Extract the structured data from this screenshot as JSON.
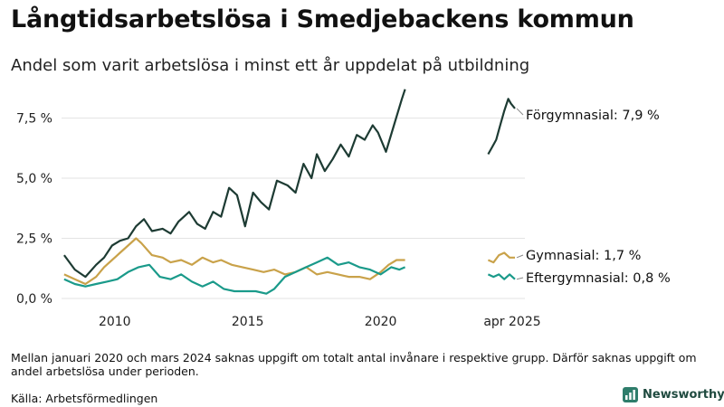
{
  "title": "Långtidsarbetslösa i Smedjebackens kommun",
  "subtitle": "Andel som varit arbetslösa i minst ett år uppdelat på utbildning",
  "note": "Mellan januari 2020 och mars 2024 saknas uppgift om totalt antal invånare i respektive grupp. Därför saknas uppgift om andel arbetslösa under perioden.",
  "source": "Källa: Arbetsförmedlingen",
  "brand": "Newsworthy",
  "chart_data": {
    "type": "line",
    "title": "Långtidsarbetslösa i Smedjebackens kommun",
    "subtitle": "Andel som varit arbetslösa i minst ett år uppdelat på utbildning",
    "xlabel": "",
    "ylabel": "",
    "ylim": [
      0,
      8.8
    ],
    "yticks": [
      0,
      2.5,
      5.0,
      7.5
    ],
    "ytick_labels": [
      "0,0 %",
      "2,5 %",
      "5,0 %",
      "7,5 %"
    ],
    "xticks": [
      2010,
      2015,
      2020
    ],
    "xtick_labels": [
      "2010",
      "2015",
      "2020"
    ],
    "recent_label": "apr 2025",
    "grid": true,
    "legend": "right-end labels",
    "series": [
      {
        "name": "Förgymnasial",
        "end_label": "Förgymnasial: 7,9 %",
        "color": "#1d3b33",
        "x": [
          2008.1,
          2008.5,
          2008.9,
          2009.3,
          2009.6,
          2009.9,
          2010.2,
          2010.5,
          2010.8,
          2011.1,
          2011.4,
          2011.8,
          2012.1,
          2012.4,
          2012.8,
          2013.1,
          2013.4,
          2013.7,
          2014.0,
          2014.3,
          2014.6,
          2014.9,
          2015.2,
          2015.5,
          2015.8,
          2016.1,
          2016.5,
          2016.8,
          2017.1,
          2017.4,
          2017.6,
          2017.9,
          2018.2,
          2018.5,
          2018.8,
          2019.1,
          2019.4,
          2019.7,
          2019.9,
          2020.2,
          2020.5,
          2020.8,
          2020.92
        ],
        "values": [
          1.8,
          1.2,
          0.9,
          1.4,
          1.7,
          2.2,
          2.4,
          2.5,
          3.0,
          3.3,
          2.8,
          2.9,
          2.7,
          3.2,
          3.6,
          3.1,
          2.9,
          3.6,
          3.4,
          4.6,
          4.3,
          3.0,
          4.4,
          4.0,
          3.7,
          4.9,
          4.7,
          4.4,
          5.6,
          5.0,
          6.0,
          5.3,
          5.8,
          6.4,
          5.9,
          6.8,
          6.6,
          7.2,
          6.9,
          6.1,
          7.2,
          8.3,
          8.7
        ],
        "recent": {
          "x": [
            2024.25,
            2024.4,
            2024.55,
            2024.7,
            2024.85,
            2025.0,
            2025.1,
            2025.25
          ],
          "values": [
            6.0,
            6.3,
            6.6,
            7.2,
            7.8,
            8.3,
            8.1,
            7.9
          ]
        }
      },
      {
        "name": "Gymnasial",
        "end_label": "Gymnasial: 1,7 %",
        "color": "#c9a24a",
        "x": [
          2008.1,
          2008.5,
          2008.9,
          2009.3,
          2009.6,
          2009.9,
          2010.2,
          2010.5,
          2010.8,
          2011.0,
          2011.4,
          2011.8,
          2012.1,
          2012.5,
          2012.9,
          2013.3,
          2013.7,
          2014.0,
          2014.4,
          2014.8,
          2015.2,
          2015.6,
          2016.0,
          2016.4,
          2016.8,
          2017.2,
          2017.6,
          2018.0,
          2018.4,
          2018.8,
          2019.2,
          2019.6,
          2020.0,
          2020.3,
          2020.6,
          2020.92
        ],
        "values": [
          1.0,
          0.8,
          0.6,
          0.9,
          1.3,
          1.6,
          1.9,
          2.2,
          2.5,
          2.3,
          1.8,
          1.7,
          1.5,
          1.6,
          1.4,
          1.7,
          1.5,
          1.6,
          1.4,
          1.3,
          1.2,
          1.1,
          1.2,
          1.0,
          1.1,
          1.3,
          1.0,
          1.1,
          1.0,
          0.9,
          0.9,
          0.8,
          1.1,
          1.4,
          1.6,
          1.6
        ],
        "recent": {
          "x": [
            2024.25,
            2024.45,
            2024.65,
            2024.85,
            2025.05,
            2025.25
          ],
          "values": [
            1.6,
            1.5,
            1.8,
            1.9,
            1.7,
            1.7
          ]
        }
      },
      {
        "name": "Eftergymnasial",
        "end_label": "Eftergymnasial: 0,8 %",
        "color": "#1a9a8a",
        "x": [
          2008.1,
          2008.5,
          2008.9,
          2009.3,
          2009.7,
          2010.1,
          2010.5,
          2010.9,
          2011.3,
          2011.7,
          2012.1,
          2012.5,
          2012.9,
          2013.3,
          2013.7,
          2014.1,
          2014.5,
          2014.9,
          2015.3,
          2015.7,
          2016.0,
          2016.4,
          2016.8,
          2017.2,
          2017.6,
          2018.0,
          2018.4,
          2018.8,
          2019.2,
          2019.6,
          2020.0,
          2020.4,
          2020.7,
          2020.92
        ],
        "values": [
          0.8,
          0.6,
          0.5,
          0.6,
          0.7,
          0.8,
          1.1,
          1.3,
          1.4,
          0.9,
          0.8,
          1.0,
          0.7,
          0.5,
          0.7,
          0.4,
          0.3,
          0.3,
          0.3,
          0.2,
          0.4,
          0.9,
          1.1,
          1.3,
          1.5,
          1.7,
          1.4,
          1.5,
          1.3,
          1.2,
          1.0,
          1.3,
          1.2,
          1.3
        ],
        "recent": {
          "x": [
            2024.25,
            2024.45,
            2024.65,
            2024.85,
            2025.05,
            2025.25
          ],
          "values": [
            1.0,
            0.9,
            1.0,
            0.8,
            1.0,
            0.8
          ]
        }
      }
    ]
  }
}
